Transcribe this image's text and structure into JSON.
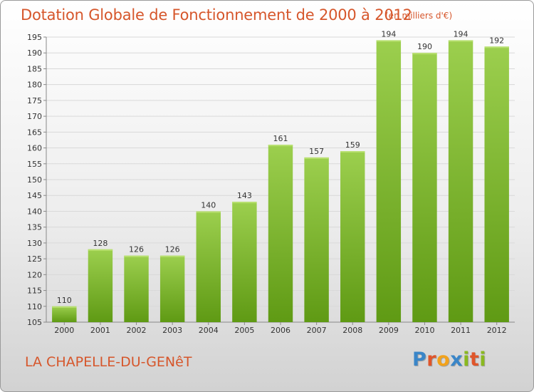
{
  "header": {
    "title": "Dotation Globale de Fonctionnement de 2000 à 2012",
    "subtitle": "(en milliers d'€)"
  },
  "footer": {
    "commune": "LA CHAPELLE-DU-GENêT",
    "logo_letters": [
      "P",
      "r",
      "o",
      "x",
      "i",
      "t",
      "i"
    ],
    "logo_colors": [
      "#3a86c8",
      "#e0552a",
      "#f2a21b",
      "#3a86c8",
      "#8ab920",
      "#e0552a",
      "#8ab920"
    ]
  },
  "chart_data": {
    "type": "bar",
    "title": "Dotation Globale de Fonctionnement de 2000 à 2012",
    "subtitle": "(en milliers d'€)",
    "categories": [
      "2000",
      "2001",
      "2002",
      "2003",
      "2004",
      "2005",
      "2006",
      "2007",
      "2008",
      "2009",
      "2010",
      "2011",
      "2012"
    ],
    "values": [
      110,
      128,
      126,
      126,
      140,
      143,
      161,
      157,
      159,
      194,
      190,
      194,
      192
    ],
    "ylim": [
      105,
      195
    ],
    "yticks": [
      105,
      110,
      115,
      120,
      125,
      130,
      135,
      140,
      145,
      150,
      155,
      160,
      165,
      170,
      175,
      180,
      185,
      190,
      195
    ],
    "grid": true,
    "bar_color_top": "#9ccf4e",
    "bar_color_bottom": "#5f9a14"
  }
}
